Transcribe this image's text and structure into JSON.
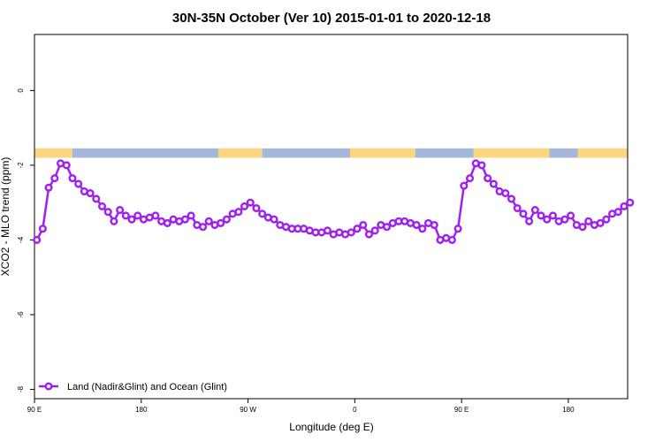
{
  "chart_data": {
    "type": "line",
    "title": "30N-35N October (Ver 10)   2015-01-01 to 2020-12-18",
    "xlabel": "Longitude (deg E)",
    "ylabel": "XCO2 - MLO trend (ppm)",
    "xlim": [
      90,
      590
    ],
    "ylim": [
      -8.25,
      1.5
    ],
    "x_ticks": [
      {
        "value": 90,
        "label": "90 E"
      },
      {
        "value": 180,
        "label": "180"
      },
      {
        "value": 270,
        "label": "90 W"
      },
      {
        "value": 360,
        "label": "0"
      },
      {
        "value": 450,
        "label": "90 E"
      },
      {
        "value": 540,
        "label": "180"
      }
    ],
    "y_ticks": [
      {
        "value": 0,
        "label": "0"
      },
      {
        "value": -2,
        "label": "-2"
      },
      {
        "value": -4,
        "label": "-4"
      },
      {
        "value": -6,
        "label": "-6"
      },
      {
        "value": -8,
        "label": "-8"
      }
    ],
    "grid": false,
    "legend_position": "bottom-left",
    "surface_band": {
      "y_range": [
        -1.8,
        -1.55
      ],
      "ocean_color": "#a4b8dc",
      "land_color": "#fdd77e",
      "land_segments": [
        [
          90,
          122
        ],
        [
          245,
          282
        ],
        [
          356,
          411
        ],
        [
          460,
          524
        ],
        [
          548,
          590
        ]
      ]
    },
    "series": [
      {
        "name": "Land (Nadir&Glint) and Ocean (Glint)",
        "color": "#a020f0",
        "x": [
          92,
          97,
          102,
          107,
          112,
          117,
          122,
          127,
          132,
          137,
          142,
          147,
          152,
          157,
          162,
          167,
          172,
          177,
          182,
          187,
          192,
          197,
          202,
          207,
          212,
          217,
          222,
          227,
          232,
          237,
          242,
          247,
          252,
          257,
          262,
          267,
          272,
          277,
          282,
          287,
          292,
          297,
          302,
          307,
          312,
          317,
          322,
          327,
          332,
          337,
          342,
          347,
          352,
          357,
          362,
          367,
          372,
          377,
          382,
          387,
          392,
          397,
          402,
          407,
          412,
          417,
          422,
          427,
          432,
          437,
          442,
          447,
          452,
          457,
          462,
          467,
          472,
          477,
          482,
          487,
          492,
          497,
          502,
          507,
          512,
          517,
          522,
          527,
          532,
          537,
          542,
          547,
          552,
          557,
          562,
          567,
          572,
          577,
          582,
          587,
          592
        ],
        "y": [
          -4.0,
          -3.7,
          -2.6,
          -2.35,
          -1.95,
          -2.0,
          -2.35,
          -2.5,
          -2.7,
          -2.75,
          -2.9,
          -3.1,
          -3.25,
          -3.5,
          -3.2,
          -3.35,
          -3.45,
          -3.35,
          -3.45,
          -3.4,
          -3.35,
          -3.5,
          -3.55,
          -3.45,
          -3.5,
          -3.45,
          -3.35,
          -3.6,
          -3.65,
          -3.5,
          -3.6,
          -3.55,
          -3.45,
          -3.3,
          -3.25,
          -3.1,
          -3.0,
          -3.15,
          -3.3,
          -3.4,
          -3.45,
          -3.6,
          -3.65,
          -3.7,
          -3.7,
          -3.7,
          -3.75,
          -3.8,
          -3.8,
          -3.75,
          -3.85,
          -3.8,
          -3.85,
          -3.8,
          -3.7,
          -3.6,
          -3.85,
          -3.75,
          -3.6,
          -3.65,
          -3.55,
          -3.5,
          -3.5,
          -3.55,
          -3.6,
          -3.7,
          -3.55,
          -3.6,
          -4.0,
          -3.95,
          -4.0,
          -3.7,
          -2.55,
          -2.35,
          -1.95,
          -2.0,
          -2.35,
          -2.5,
          -2.7,
          -2.75,
          -2.9,
          -3.15,
          -3.3,
          -3.5,
          -3.2,
          -3.35,
          -3.45,
          -3.35,
          -3.5,
          -3.45,
          -3.35,
          -3.6,
          -3.65,
          -3.5,
          -3.6,
          -3.55,
          -3.45,
          -3.3,
          -3.25,
          -3.1,
          -3.0
        ]
      }
    ]
  }
}
